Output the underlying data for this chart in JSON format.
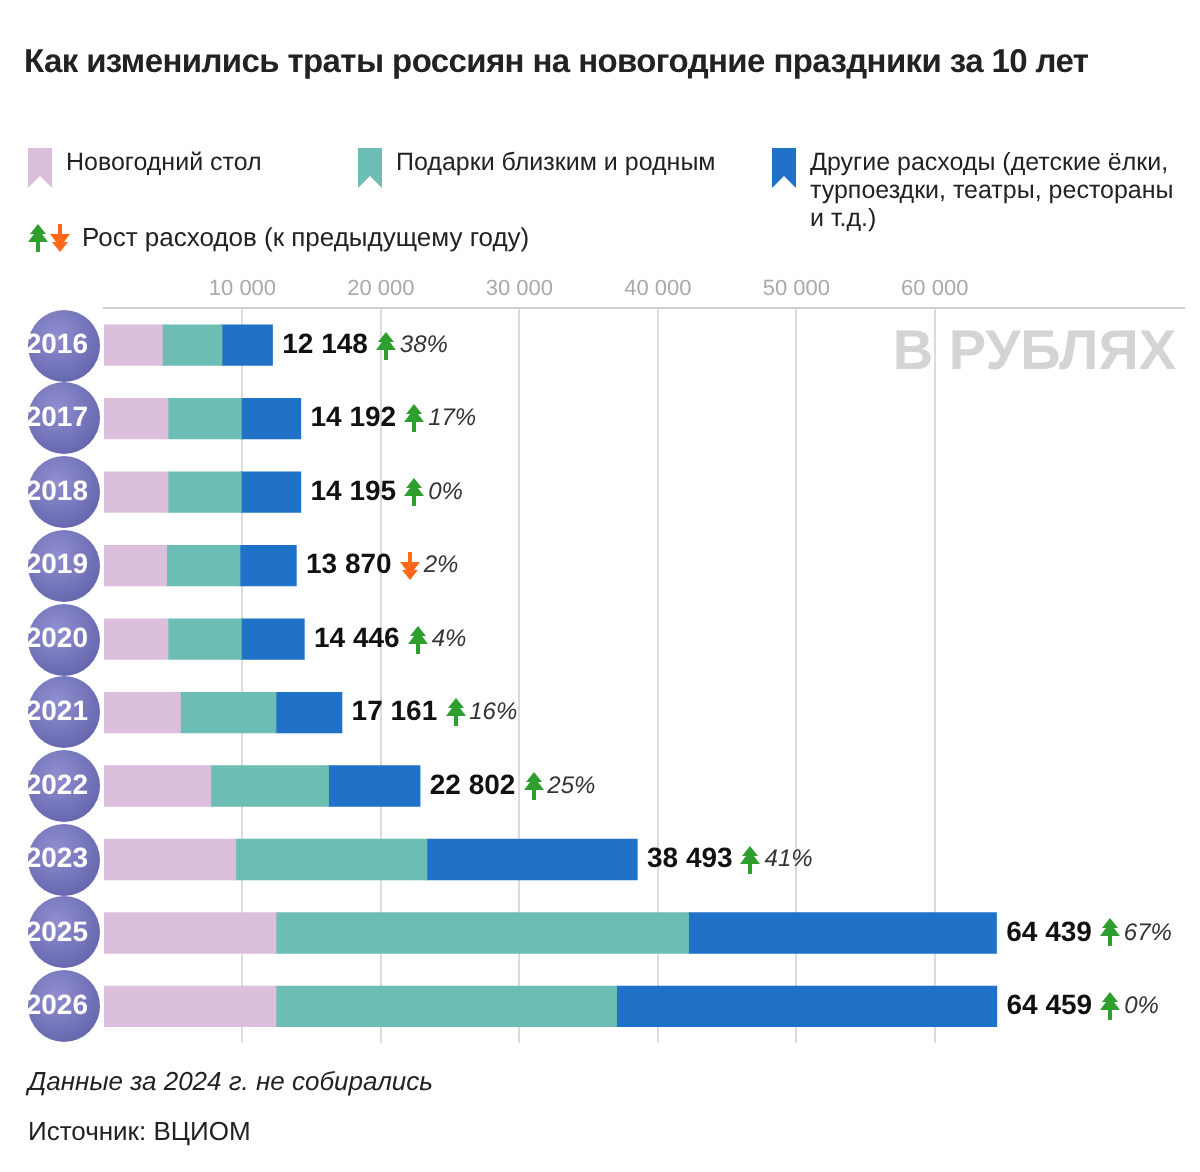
{
  "chart_data": {
    "type": "bar",
    "orientation": "horizontal",
    "stacked": true,
    "title": "Как изменились траты россиян на новогодние праздники за 10 лет",
    "categories": [
      "2016",
      "2017",
      "2018",
      "2019",
      "2020",
      "2021",
      "2022",
      "2023",
      "2025",
      "2026"
    ],
    "series": [
      {
        "name": "Новогодний стол",
        "color": "#dcbfdc",
        "values": [
          4200,
          4600,
          4600,
          4500,
          4600,
          5500,
          7700,
          9500,
          12400,
          12400
        ]
      },
      {
        "name": "Подарки близким и родным",
        "color": "#6cbdb3",
        "values": [
          4300,
          5300,
          5300,
          5300,
          5300,
          6900,
          8500,
          13800,
          29800,
          24600
        ]
      },
      {
        "name": "Другие расходы (детские ёлки, турпоездки, театры, рестораны и т.д.)",
        "color": "#1f72c8",
        "values": [
          3648,
          4292,
          4295,
          4070,
          4546,
          4761,
          6602,
          15193,
          22239,
          27459
        ]
      }
    ],
    "totals": [
      "12 148",
      "14 192",
      "14 195",
      "13 870",
      "14 446",
      "17 161",
      "22 802",
      "38 493",
      "64 439",
      "64 459"
    ],
    "xlim": [
      0,
      78000
    ],
    "xticks": [
      {
        "value": 10000,
        "label": "10 000"
      },
      {
        "value": 20000,
        "label": "20 000"
      },
      {
        "value": 30000,
        "label": "30 000"
      },
      {
        "value": 40000,
        "label": "40 000"
      },
      {
        "value": 50000,
        "label": "50 000"
      },
      {
        "value": 60000,
        "label": "60 000"
      }
    ],
    "grid": "x",
    "legend": "top",
    "annotations": [
      "Рост расходов (к предыдущему году)",
      "В РУБЛЯХ",
      "Данные за 2024 г. не собирались",
      "Источник: ВЦИОМ",
      "38%",
      "17%",
      "0%",
      "2%",
      "4%",
      "16%",
      "25%",
      "41%",
      "67%",
      "0%"
    ]
  }
}
